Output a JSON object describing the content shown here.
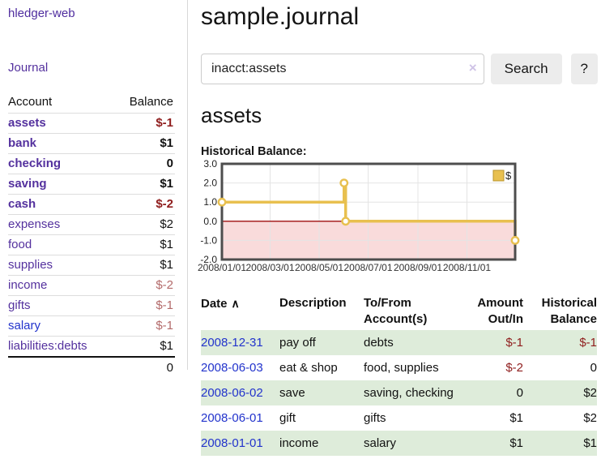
{
  "brand": {
    "label": "hledger-web"
  },
  "nav": {
    "journal": "Journal"
  },
  "sidebar": {
    "headers": {
      "account": "Account",
      "balance": "Balance"
    },
    "rows": [
      {
        "account": "assets",
        "balance": "$-1"
      },
      {
        "account": "bank",
        "balance": "$1"
      },
      {
        "account": "checking",
        "balance": "0"
      },
      {
        "account": "saving",
        "balance": "$1"
      },
      {
        "account": "cash",
        "balance": "$-2"
      },
      {
        "account": "expenses",
        "balance": "$2"
      },
      {
        "account": "food",
        "balance": "$1"
      },
      {
        "account": "supplies",
        "balance": "$1"
      },
      {
        "account": "income",
        "balance": "$-2"
      },
      {
        "account": "gifts",
        "balance": "$-1"
      },
      {
        "account": "salary",
        "balance": "$-1"
      },
      {
        "account": "liabilities:debts",
        "balance": "$1"
      }
    ],
    "total": "0"
  },
  "header": {
    "title": "sample.journal"
  },
  "search": {
    "value": "inacct:assets",
    "clear_icon": "×",
    "button": "Search",
    "help": "?"
  },
  "account_page": {
    "heading": "assets",
    "chart_title": "Historical Balance:"
  },
  "chart_data": {
    "type": "line",
    "step": true,
    "title": "Historical Balance",
    "series": [
      {
        "name": "$",
        "color": "#e8c04f",
        "points": [
          [
            "2008-01-01",
            1
          ],
          [
            "2008-06-01",
            2
          ],
          [
            "2008-06-03",
            0
          ],
          [
            "2008-12-31",
            -1
          ]
        ]
      }
    ],
    "x_range": [
      "2008-01-01",
      "2008-12-31"
    ],
    "ylim": [
      -2,
      3
    ],
    "y_ticks": [
      "3.0",
      "2.0",
      "1.0",
      "0.0",
      "-1.0",
      "-2.0"
    ],
    "x_ticks": [
      "2008/01/01",
      "2008/03/01",
      "2008/05/01",
      "2008/07/01",
      "2008/09/01",
      "2008/11/01"
    ],
    "legend": [
      {
        "label": "$",
        "swatch": "#e8c04f"
      }
    ],
    "legend_position": "top-right",
    "grid": true,
    "negative_region_fill": "#f9dbdb",
    "zero_line_color": "#9e0d0d",
    "border_color": "#4d4d4d"
  },
  "register": {
    "headers": {
      "date": "Date",
      "sort_icon": "∧",
      "description": "Description",
      "tofrom_1": "To/From",
      "tofrom_2": "Account(s)",
      "amount_1": "Amount",
      "amount_2": "Out/In",
      "balance_1": "Historical",
      "balance_2": "Balance"
    },
    "rows": [
      {
        "date": "2008-12-31",
        "description": "pay off",
        "accounts": "debts",
        "amount": "$-1",
        "balance": "$-1"
      },
      {
        "date": "2008-06-03",
        "description": "eat & shop",
        "accounts": "food, supplies",
        "amount": "$-2",
        "balance": "0"
      },
      {
        "date": "2008-06-02",
        "description": "save",
        "accounts": "saving, checking",
        "amount": "0",
        "balance": "$2"
      },
      {
        "date": "2008-06-01",
        "description": "gift",
        "accounts": "gifts",
        "amount": "$1",
        "balance": "$2"
      },
      {
        "date": "2008-01-01",
        "description": "income",
        "accounts": "salary",
        "amount": "$1",
        "balance": "$1"
      }
    ]
  },
  "colors": {
    "brand_purple": "#54319e",
    "link_blue": "#2233cc",
    "negative": "#8f1d1d",
    "negative_muted": "#b36a6a",
    "row_stripe_green": "#deecda",
    "accent_gold": "#e8c04f",
    "button_bg": "#ececec"
  }
}
